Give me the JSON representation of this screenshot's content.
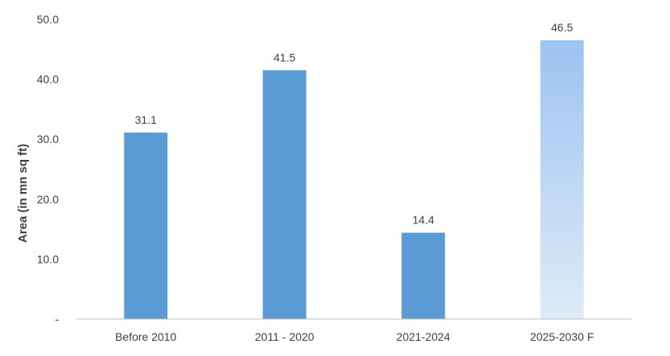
{
  "chart_data": {
    "type": "bar",
    "categories": [
      "Before 2010",
      "2011 - 2020",
      "2021-2024",
      "2025-2030 F"
    ],
    "values": [
      31.1,
      41.5,
      14.4,
      46.5
    ],
    "value_labels": [
      "31.1",
      "41.5",
      "14.4",
      "46.5"
    ],
    "ylabel": "Area (in mn sq ft)",
    "xlabel": "",
    "ylim": [
      0,
      50
    ],
    "yticks": [
      0,
      10,
      20,
      30,
      40,
      50
    ],
    "ytick_labels": [
      "-",
      "10.0",
      "20.0",
      "30.0",
      "40.0",
      "50.0"
    ],
    "grid": false,
    "colors": {
      "actual": "#5b9bd5",
      "forecast_top": "#9dc3f0",
      "forecast_bottom": "#deebf8",
      "axis": "#bfbfbf",
      "text": "#404040"
    },
    "forecast_index": 3
  }
}
